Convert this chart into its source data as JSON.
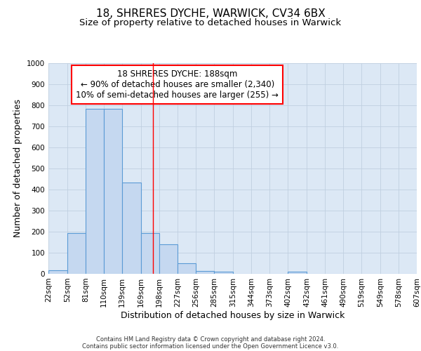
{
  "title_line1": "18, SHRERES DYCHE, WARWICK, CV34 6BX",
  "title_line2": "Size of property relative to detached houses in Warwick",
  "xlabel": "Distribution of detached houses by size in Warwick",
  "ylabel": "Number of detached properties",
  "bar_left_edges": [
    22,
    52,
    81,
    110,
    139,
    169,
    198,
    227,
    256,
    285,
    315,
    344,
    373,
    402,
    432,
    461,
    490,
    519,
    549,
    578
  ],
  "bar_heights": [
    18,
    195,
    785,
    785,
    435,
    192,
    140,
    50,
    14,
    11,
    0,
    0,
    0,
    10,
    0,
    0,
    0,
    0,
    0,
    0
  ],
  "bar_widths": [
    30,
    29,
    29,
    29,
    30,
    29,
    29,
    29,
    29,
    30,
    29,
    29,
    29,
    30,
    29,
    29,
    29,
    30,
    29,
    29
  ],
  "bar_color": "#c5d8f0",
  "bar_edge_color": "#5b9bd5",
  "red_line_x": 188,
  "ylim": [
    0,
    1000
  ],
  "yticks": [
    0,
    100,
    200,
    300,
    400,
    500,
    600,
    700,
    800,
    900,
    1000
  ],
  "xtick_labels": [
    "22sqm",
    "52sqm",
    "81sqm",
    "110sqm",
    "139sqm",
    "169sqm",
    "198sqm",
    "227sqm",
    "256sqm",
    "285sqm",
    "315sqm",
    "344sqm",
    "373sqm",
    "402sqm",
    "432sqm",
    "461sqm",
    "490sqm",
    "519sqm",
    "549sqm",
    "578sqm",
    "607sqm"
  ],
  "xtick_positions": [
    22,
    52,
    81,
    110,
    139,
    169,
    198,
    227,
    256,
    285,
    315,
    344,
    373,
    402,
    432,
    461,
    490,
    519,
    549,
    578,
    607
  ],
  "annotation_text": "18 SHRERES DYCHE: 188sqm\n← 90% of detached houses are smaller (2,340)\n10% of semi-detached houses are larger (255) →",
  "annotation_box_facecolor": "white",
  "annotation_box_edgecolor": "red",
  "grid_color": "#c0cfe0",
  "background_color": "#dce8f5",
  "footer_line1": "Contains HM Land Registry data © Crown copyright and database right 2024.",
  "footer_line2": "Contains public sector information licensed under the Open Government Licence v3.0.",
  "title_fontsize": 11,
  "subtitle_fontsize": 9.5,
  "axis_label_fontsize": 9,
  "tick_fontsize": 7.5,
  "annotation_fontsize": 8.5,
  "footer_fontsize": 6
}
